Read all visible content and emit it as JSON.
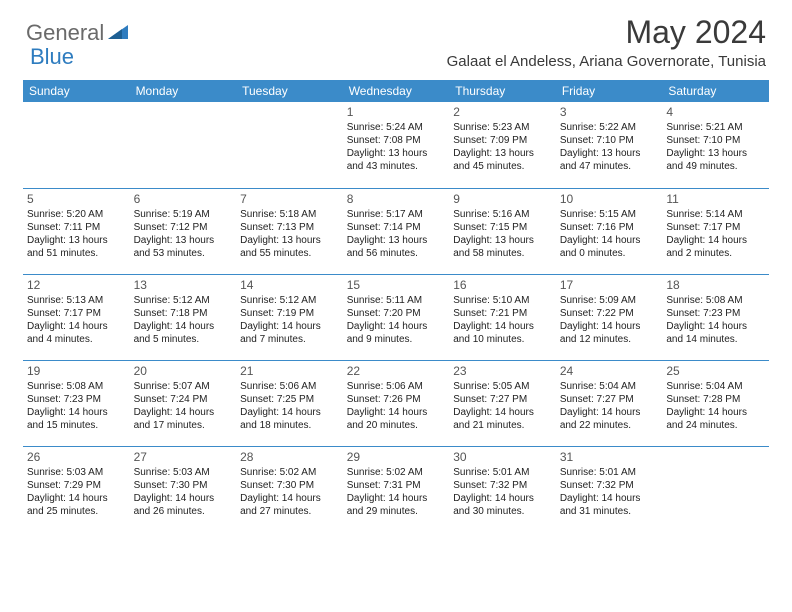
{
  "brand": {
    "part1": "General",
    "part2": "Blue"
  },
  "title": "May 2024",
  "location": "Galaat el Andeless, Ariana Governorate, Tunisia",
  "colors": {
    "header_bg": "#3b8bc9",
    "header_text": "#ffffff",
    "border": "#3b8bc9",
    "title_color": "#3a3a3a",
    "brand_gray": "#6a6a6a",
    "brand_blue": "#2e7cbf"
  },
  "weekdays": [
    "Sunday",
    "Monday",
    "Tuesday",
    "Wednesday",
    "Thursday",
    "Friday",
    "Saturday"
  ],
  "weeks": [
    [
      null,
      null,
      null,
      {
        "n": "1",
        "sr": "Sunrise: 5:24 AM",
        "ss": "Sunset: 7:08 PM",
        "d1": "Daylight: 13 hours",
        "d2": "and 43 minutes."
      },
      {
        "n": "2",
        "sr": "Sunrise: 5:23 AM",
        "ss": "Sunset: 7:09 PM",
        "d1": "Daylight: 13 hours",
        "d2": "and 45 minutes."
      },
      {
        "n": "3",
        "sr": "Sunrise: 5:22 AM",
        "ss": "Sunset: 7:10 PM",
        "d1": "Daylight: 13 hours",
        "d2": "and 47 minutes."
      },
      {
        "n": "4",
        "sr": "Sunrise: 5:21 AM",
        "ss": "Sunset: 7:10 PM",
        "d1": "Daylight: 13 hours",
        "d2": "and 49 minutes."
      }
    ],
    [
      {
        "n": "5",
        "sr": "Sunrise: 5:20 AM",
        "ss": "Sunset: 7:11 PM",
        "d1": "Daylight: 13 hours",
        "d2": "and 51 minutes."
      },
      {
        "n": "6",
        "sr": "Sunrise: 5:19 AM",
        "ss": "Sunset: 7:12 PM",
        "d1": "Daylight: 13 hours",
        "d2": "and 53 minutes."
      },
      {
        "n": "7",
        "sr": "Sunrise: 5:18 AM",
        "ss": "Sunset: 7:13 PM",
        "d1": "Daylight: 13 hours",
        "d2": "and 55 minutes."
      },
      {
        "n": "8",
        "sr": "Sunrise: 5:17 AM",
        "ss": "Sunset: 7:14 PM",
        "d1": "Daylight: 13 hours",
        "d2": "and 56 minutes."
      },
      {
        "n": "9",
        "sr": "Sunrise: 5:16 AM",
        "ss": "Sunset: 7:15 PM",
        "d1": "Daylight: 13 hours",
        "d2": "and 58 minutes."
      },
      {
        "n": "10",
        "sr": "Sunrise: 5:15 AM",
        "ss": "Sunset: 7:16 PM",
        "d1": "Daylight: 14 hours",
        "d2": "and 0 minutes."
      },
      {
        "n": "11",
        "sr": "Sunrise: 5:14 AM",
        "ss": "Sunset: 7:17 PM",
        "d1": "Daylight: 14 hours",
        "d2": "and 2 minutes."
      }
    ],
    [
      {
        "n": "12",
        "sr": "Sunrise: 5:13 AM",
        "ss": "Sunset: 7:17 PM",
        "d1": "Daylight: 14 hours",
        "d2": "and 4 minutes."
      },
      {
        "n": "13",
        "sr": "Sunrise: 5:12 AM",
        "ss": "Sunset: 7:18 PM",
        "d1": "Daylight: 14 hours",
        "d2": "and 5 minutes."
      },
      {
        "n": "14",
        "sr": "Sunrise: 5:12 AM",
        "ss": "Sunset: 7:19 PM",
        "d1": "Daylight: 14 hours",
        "d2": "and 7 minutes."
      },
      {
        "n": "15",
        "sr": "Sunrise: 5:11 AM",
        "ss": "Sunset: 7:20 PM",
        "d1": "Daylight: 14 hours",
        "d2": "and 9 minutes."
      },
      {
        "n": "16",
        "sr": "Sunrise: 5:10 AM",
        "ss": "Sunset: 7:21 PM",
        "d1": "Daylight: 14 hours",
        "d2": "and 10 minutes."
      },
      {
        "n": "17",
        "sr": "Sunrise: 5:09 AM",
        "ss": "Sunset: 7:22 PM",
        "d1": "Daylight: 14 hours",
        "d2": "and 12 minutes."
      },
      {
        "n": "18",
        "sr": "Sunrise: 5:08 AM",
        "ss": "Sunset: 7:23 PM",
        "d1": "Daylight: 14 hours",
        "d2": "and 14 minutes."
      }
    ],
    [
      {
        "n": "19",
        "sr": "Sunrise: 5:08 AM",
        "ss": "Sunset: 7:23 PM",
        "d1": "Daylight: 14 hours",
        "d2": "and 15 minutes."
      },
      {
        "n": "20",
        "sr": "Sunrise: 5:07 AM",
        "ss": "Sunset: 7:24 PM",
        "d1": "Daylight: 14 hours",
        "d2": "and 17 minutes."
      },
      {
        "n": "21",
        "sr": "Sunrise: 5:06 AM",
        "ss": "Sunset: 7:25 PM",
        "d1": "Daylight: 14 hours",
        "d2": "and 18 minutes."
      },
      {
        "n": "22",
        "sr": "Sunrise: 5:06 AM",
        "ss": "Sunset: 7:26 PM",
        "d1": "Daylight: 14 hours",
        "d2": "and 20 minutes."
      },
      {
        "n": "23",
        "sr": "Sunrise: 5:05 AM",
        "ss": "Sunset: 7:27 PM",
        "d1": "Daylight: 14 hours",
        "d2": "and 21 minutes."
      },
      {
        "n": "24",
        "sr": "Sunrise: 5:04 AM",
        "ss": "Sunset: 7:27 PM",
        "d1": "Daylight: 14 hours",
        "d2": "and 22 minutes."
      },
      {
        "n": "25",
        "sr": "Sunrise: 5:04 AM",
        "ss": "Sunset: 7:28 PM",
        "d1": "Daylight: 14 hours",
        "d2": "and 24 minutes."
      }
    ],
    [
      {
        "n": "26",
        "sr": "Sunrise: 5:03 AM",
        "ss": "Sunset: 7:29 PM",
        "d1": "Daylight: 14 hours",
        "d2": "and 25 minutes."
      },
      {
        "n": "27",
        "sr": "Sunrise: 5:03 AM",
        "ss": "Sunset: 7:30 PM",
        "d1": "Daylight: 14 hours",
        "d2": "and 26 minutes."
      },
      {
        "n": "28",
        "sr": "Sunrise: 5:02 AM",
        "ss": "Sunset: 7:30 PM",
        "d1": "Daylight: 14 hours",
        "d2": "and 27 minutes."
      },
      {
        "n": "29",
        "sr": "Sunrise: 5:02 AM",
        "ss": "Sunset: 7:31 PM",
        "d1": "Daylight: 14 hours",
        "d2": "and 29 minutes."
      },
      {
        "n": "30",
        "sr": "Sunrise: 5:01 AM",
        "ss": "Sunset: 7:32 PM",
        "d1": "Daylight: 14 hours",
        "d2": "and 30 minutes."
      },
      {
        "n": "31",
        "sr": "Sunrise: 5:01 AM",
        "ss": "Sunset: 7:32 PM",
        "d1": "Daylight: 14 hours",
        "d2": "and 31 minutes."
      },
      null
    ]
  ]
}
